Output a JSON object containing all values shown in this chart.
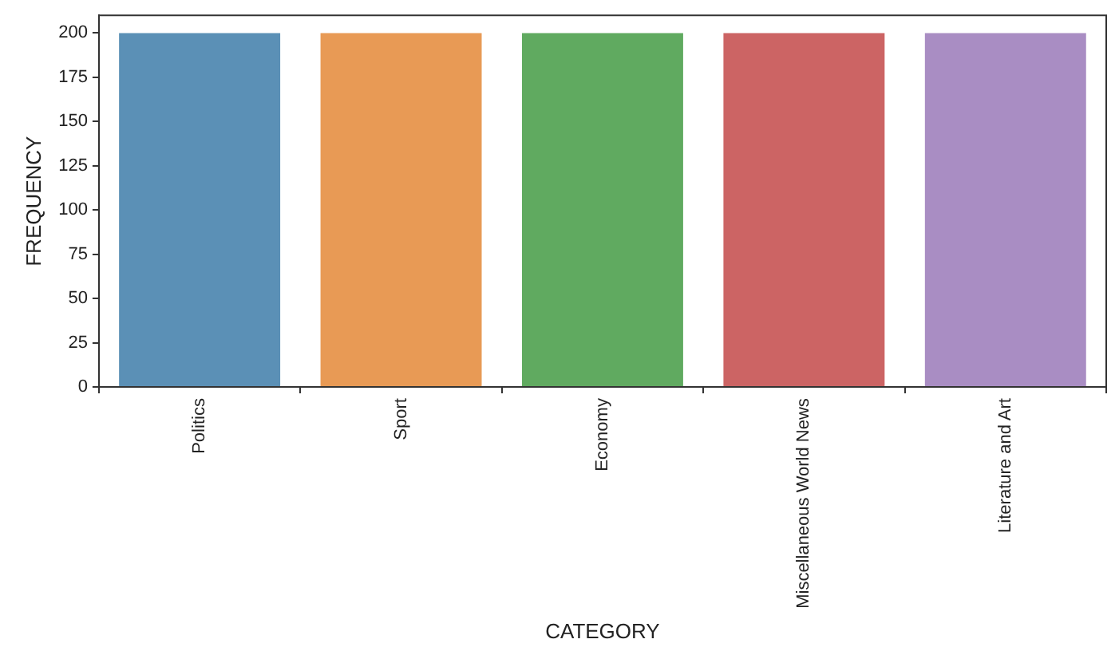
{
  "chart_data": {
    "type": "bar",
    "xlabel": "CATEGORY",
    "ylabel": "FREQUENCY",
    "categories": [
      "Politics",
      "Sport",
      "Economy",
      "Miscellaneous World News",
      "Literature and Art"
    ],
    "values": [
      200,
      200,
      200,
      200,
      200
    ],
    "colors": [
      "#5b90b6",
      "#e89a55",
      "#60aa60",
      "#cc6464",
      "#a98dc3"
    ],
    "ylim": [
      0,
      210
    ],
    "yticks": [
      0,
      25,
      50,
      75,
      100,
      125,
      150,
      175,
      200
    ],
    "grid": false,
    "legend": false
  }
}
